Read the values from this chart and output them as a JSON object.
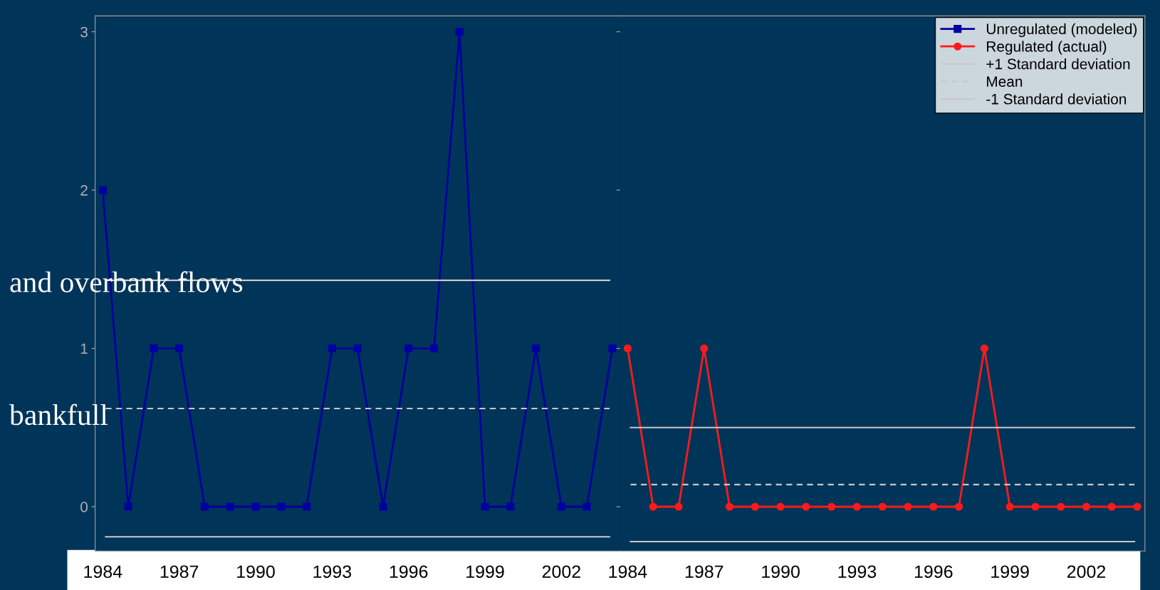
{
  "chart_data": [
    {
      "type": "line",
      "categories": [
        "1984",
        null,
        null,
        "1987",
        null,
        null,
        "1990",
        null,
        null,
        "1993",
        null,
        null,
        "1996",
        null,
        null,
        "1999",
        null,
        null,
        "2002",
        null,
        null
      ],
      "series": [
        {
          "name": "Unregulated (modeled)",
          "color": "#0000a0",
          "marker": "square",
          "values": [
            2,
            0,
            1,
            1,
            0,
            0,
            0,
            0,
            0,
            1,
            1,
            0,
            1,
            1,
            3,
            0,
            0,
            1,
            0,
            0,
            1
          ]
        }
      ],
      "ylim": [
        -0.28,
        3.1
      ],
      "yticks": [
        0,
        1,
        2,
        3
      ],
      "grid": false,
      "legend": "top right",
      "ref_lines": [
        {
          "axis": "y",
          "value": 1.43,
          "color": "#c8c8c8",
          "line_style": "solid"
        },
        {
          "axis": "y",
          "value": 0.62,
          "color": "#c8c8c8",
          "line_style": "dashed"
        },
        {
          "axis": "y",
          "value": -0.19,
          "color": "#c8c8c8",
          "line_style": "solid"
        }
      ],
      "annotations": [
        "and overbank flows",
        "bankfull"
      ]
    },
    {
      "type": "line",
      "categories": [
        "1984",
        null,
        null,
        "1987",
        null,
        null,
        "1990",
        null,
        null,
        "1993",
        null,
        null,
        "1996",
        null,
        null,
        "1999",
        null,
        null,
        "2002",
        null,
        null
      ],
      "series": [
        {
          "name": "Regulated (actual)",
          "color": "#ff1a1a",
          "marker": "circle",
          "values": [
            1,
            0,
            0,
            1,
            0,
            0,
            0,
            0,
            0,
            0,
            0,
            0,
            0,
            0,
            1,
            0,
            0,
            0,
            0,
            0,
            0
          ]
        }
      ],
      "ylim": [
        -0.28,
        3.1
      ],
      "yticks": [
        0,
        1,
        2,
        3
      ],
      "tick_labels": "x",
      "grid": false,
      "legend": "top right",
      "ref_lines": [
        {
          "axis": "y",
          "value": 0.5,
          "label": "+1 Standard deviation",
          "color": "#c8c8c8",
          "line_style": "solid"
        },
        {
          "axis": "y",
          "value": 0.14,
          "label": "Mean",
          "color": "#c8c8c8",
          "line_style": "dashed"
        },
        {
          "axis": "y",
          "value": -0.22,
          "label": "-1 Standard deviation",
          "color": "#c8c8c8",
          "line_style": "solid"
        }
      ]
    }
  ]
}
